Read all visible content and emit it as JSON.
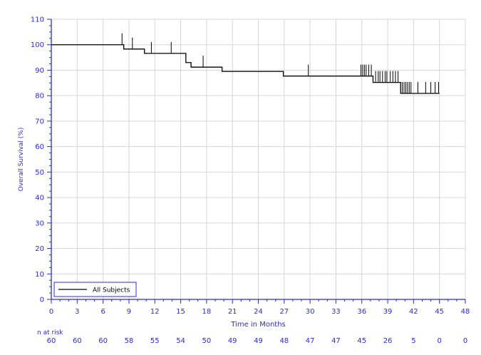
{
  "chart_data": {
    "type": "line",
    "subtype": "kaplan-meier",
    "title": "",
    "xlabel": "Time in Months",
    "ylabel": "Overall Survival (%)",
    "xlim": [
      0,
      48
    ],
    "ylim": [
      0,
      110
    ],
    "x_ticks": [
      0,
      3,
      6,
      9,
      12,
      15,
      18,
      21,
      24,
      27,
      30,
      33,
      36,
      39,
      42,
      45,
      48
    ],
    "y_ticks": [
      0,
      10,
      20,
      30,
      40,
      50,
      60,
      70,
      80,
      90,
      100,
      110
    ],
    "grid": true,
    "legend": {
      "position": "bottom-left",
      "entries": [
        "All Subjects"
      ]
    },
    "series": [
      {
        "name": "All Subjects",
        "color": "#000000",
        "steps": [
          [
            0,
            100
          ],
          [
            8.4,
            98.3
          ],
          [
            10.8,
            96.6
          ],
          [
            15.6,
            93.0
          ],
          [
            16.2,
            91.2
          ],
          [
            19.8,
            89.5
          ],
          [
            26.9,
            87.7
          ],
          [
            37.3,
            85.2
          ],
          [
            40.5,
            80.9
          ],
          [
            45.0,
            80.9
          ]
        ],
        "censored": [
          [
            8.2,
            100
          ],
          [
            9.4,
            98.3
          ],
          [
            11.6,
            96.6
          ],
          [
            13.9,
            96.6
          ],
          [
            17.6,
            91.2
          ],
          [
            29.8,
            87.7
          ],
          [
            35.9,
            87.7
          ],
          [
            36.1,
            87.7
          ],
          [
            36.3,
            87.7
          ],
          [
            36.5,
            87.7
          ],
          [
            36.8,
            87.7
          ],
          [
            37.1,
            87.7
          ],
          [
            37.6,
            85.2
          ],
          [
            37.9,
            85.2
          ],
          [
            38.1,
            85.2
          ],
          [
            38.4,
            85.2
          ],
          [
            38.7,
            85.2
          ],
          [
            38.9,
            85.2
          ],
          [
            39.3,
            85.2
          ],
          [
            39.6,
            85.2
          ],
          [
            39.9,
            85.2
          ],
          [
            40.2,
            85.2
          ],
          [
            40.7,
            80.9
          ],
          [
            40.9,
            80.9
          ],
          [
            41.1,
            80.9
          ],
          [
            41.3,
            80.9
          ],
          [
            41.5,
            80.9
          ],
          [
            41.7,
            80.9
          ],
          [
            42.5,
            80.9
          ],
          [
            43.4,
            80.9
          ],
          [
            44.0,
            80.9
          ],
          [
            44.5,
            80.9
          ],
          [
            44.9,
            80.9
          ]
        ]
      }
    ],
    "risk_table": {
      "label": "n at risk",
      "times": [
        0,
        3,
        6,
        9,
        12,
        15,
        18,
        21,
        24,
        27,
        30,
        33,
        36,
        39,
        42,
        45,
        48
      ],
      "counts": [
        60,
        60,
        60,
        58,
        55,
        54,
        50,
        49,
        49,
        48,
        47,
        47,
        45,
        26,
        5,
        0,
        0
      ]
    },
    "colors": {
      "axis": "#2b2bd8",
      "grid": "#d6d6d6",
      "curve": "#000000"
    }
  }
}
